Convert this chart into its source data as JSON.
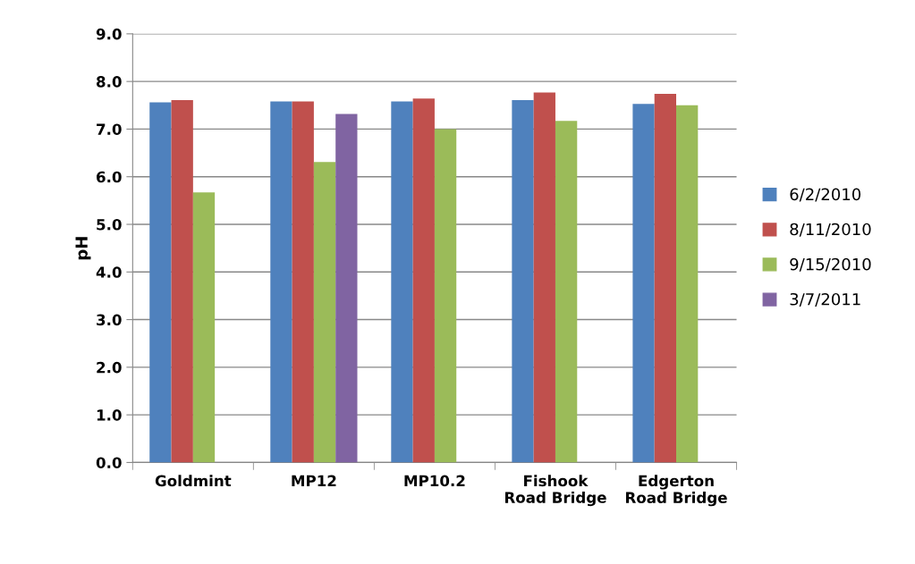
{
  "chart_data": {
    "type": "bar",
    "ylabel": "pH",
    "categories": [
      "Goldmint",
      "MP12",
      "MP10.2",
      "Fishook\nRoad Bridge",
      "Edgerton\nRoad Bridge"
    ],
    "series": [
      {
        "name": "6/2/2010",
        "color": "#4f81bd",
        "values": [
          7.56,
          7.58,
          7.58,
          7.61,
          7.53
        ]
      },
      {
        "name": "8/11/2010",
        "color": "#c0504d",
        "values": [
          7.61,
          7.58,
          7.64,
          7.77,
          7.74
        ]
      },
      {
        "name": "9/15/2010",
        "color": "#9bbb59",
        "values": [
          5.67,
          6.31,
          7.0,
          7.17,
          7.5
        ]
      },
      {
        "name": "3/7/2011",
        "color": "#8064a2",
        "values": [
          null,
          7.32,
          null,
          null,
          null
        ]
      }
    ],
    "ylim": [
      0,
      9
    ],
    "yticks": [
      {
        "value": 0,
        "label": "0.0"
      },
      {
        "value": 1,
        "label": "1.0"
      },
      {
        "value": 2,
        "label": "2.0"
      },
      {
        "value": 3,
        "label": "3.0"
      },
      {
        "value": 4,
        "label": "4.0"
      },
      {
        "value": 5,
        "label": "5.0"
      },
      {
        "value": 6,
        "label": "6.0"
      },
      {
        "value": 7,
        "label": "7.0"
      },
      {
        "value": 8,
        "label": "8.0"
      },
      {
        "value": 9,
        "label": "9.0"
      }
    ],
    "grid": "y",
    "legend": "right"
  }
}
